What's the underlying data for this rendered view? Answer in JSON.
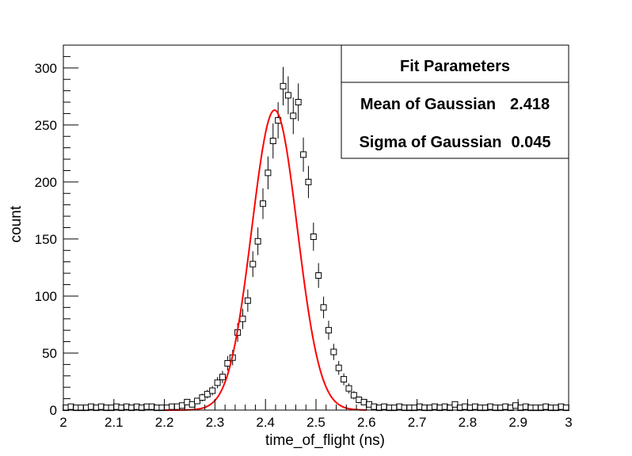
{
  "chart_data": {
    "type": "scatter",
    "xlabel": "time_of_flight (ns)",
    "ylabel": "count",
    "xlim": [
      2,
      3
    ],
    "ylim": [
      0,
      320
    ],
    "xticks": [
      "2",
      "2.1",
      "2.2",
      "2.3",
      "2.4",
      "2.5",
      "2.6",
      "2.7",
      "2.8",
      "2.9",
      "3"
    ],
    "yticks": [
      "0",
      "50",
      "100",
      "150",
      "200",
      "250",
      "300"
    ],
    "grid": false,
    "legend": {
      "placement": "top-right",
      "title": "Fit Parameters",
      "rows": [
        {
          "label": "Mean of Gaussian",
          "value": "2.418"
        },
        {
          "label": "Sigma of Gaussian",
          "value": "0.045"
        }
      ]
    },
    "fit": {
      "type": "gaussian",
      "mean": 2.418,
      "sigma": 0.045,
      "amplitude": 263,
      "x_from": 2.2,
      "x_to": 2.6,
      "color": "#ff0000"
    },
    "marker_color": "#000000",
    "series": [
      {
        "values": [
          [
            2.005,
            2
          ],
          [
            2.015,
            3
          ],
          [
            2.025,
            2
          ],
          [
            2.035,
            2
          ],
          [
            2.045,
            2
          ],
          [
            2.055,
            3
          ],
          [
            2.065,
            2
          ],
          [
            2.075,
            3
          ],
          [
            2.085,
            2
          ],
          [
            2.095,
            2
          ],
          [
            2.105,
            3
          ],
          [
            2.115,
            2
          ],
          [
            2.125,
            3
          ],
          [
            2.135,
            2
          ],
          [
            2.145,
            3
          ],
          [
            2.155,
            2
          ],
          [
            2.165,
            3
          ],
          [
            2.175,
            3
          ],
          [
            2.185,
            2
          ],
          [
            2.195,
            2
          ],
          [
            2.205,
            2
          ],
          [
            2.215,
            3
          ],
          [
            2.225,
            3
          ],
          [
            2.235,
            4
          ],
          [
            2.245,
            7
          ],
          [
            2.255,
            5
          ],
          [
            2.265,
            8
          ],
          [
            2.275,
            11
          ],
          [
            2.285,
            14
          ],
          [
            2.295,
            17
          ],
          [
            2.305,
            24
          ],
          [
            2.315,
            29
          ],
          [
            2.325,
            41
          ],
          [
            2.335,
            46
          ],
          [
            2.345,
            68
          ],
          [
            2.355,
            80
          ],
          [
            2.365,
            96
          ],
          [
            2.375,
            128
          ],
          [
            2.385,
            148
          ],
          [
            2.395,
            181
          ],
          [
            2.405,
            208
          ],
          [
            2.415,
            236
          ],
          [
            2.425,
            254
          ],
          [
            2.435,
            284
          ],
          [
            2.445,
            276
          ],
          [
            2.455,
            258
          ],
          [
            2.465,
            270
          ],
          [
            2.475,
            224
          ],
          [
            2.485,
            200
          ],
          [
            2.495,
            152
          ],
          [
            2.505,
            118
          ],
          [
            2.515,
            90
          ],
          [
            2.525,
            70
          ],
          [
            2.535,
            51
          ],
          [
            2.545,
            37
          ],
          [
            2.555,
            27
          ],
          [
            2.565,
            19
          ],
          [
            2.575,
            13
          ],
          [
            2.585,
            9
          ],
          [
            2.595,
            7
          ],
          [
            2.605,
            5
          ],
          [
            2.615,
            3
          ],
          [
            2.625,
            2
          ],
          [
            2.635,
            3
          ],
          [
            2.645,
            2
          ],
          [
            2.655,
            2
          ],
          [
            2.665,
            3
          ],
          [
            2.675,
            2
          ],
          [
            2.685,
            2
          ],
          [
            2.695,
            2
          ],
          [
            2.705,
            3
          ],
          [
            2.715,
            2
          ],
          [
            2.725,
            2
          ],
          [
            2.735,
            3
          ],
          [
            2.745,
            2
          ],
          [
            2.755,
            3
          ],
          [
            2.765,
            2
          ],
          [
            2.775,
            5
          ],
          [
            2.785,
            2
          ],
          [
            2.795,
            3
          ],
          [
            2.805,
            2
          ],
          [
            2.815,
            3
          ],
          [
            2.825,
            2
          ],
          [
            2.835,
            2
          ],
          [
            2.845,
            3
          ],
          [
            2.855,
            2
          ],
          [
            2.865,
            2
          ],
          [
            2.875,
            3
          ],
          [
            2.885,
            2
          ],
          [
            2.895,
            4
          ],
          [
            2.905,
            2
          ],
          [
            2.915,
            3
          ],
          [
            2.925,
            2
          ],
          [
            2.935,
            2
          ],
          [
            2.945,
            2
          ],
          [
            2.955,
            3
          ],
          [
            2.965,
            2
          ],
          [
            2.975,
            2
          ],
          [
            2.985,
            3
          ],
          [
            2.995,
            2
          ]
        ]
      }
    ]
  }
}
